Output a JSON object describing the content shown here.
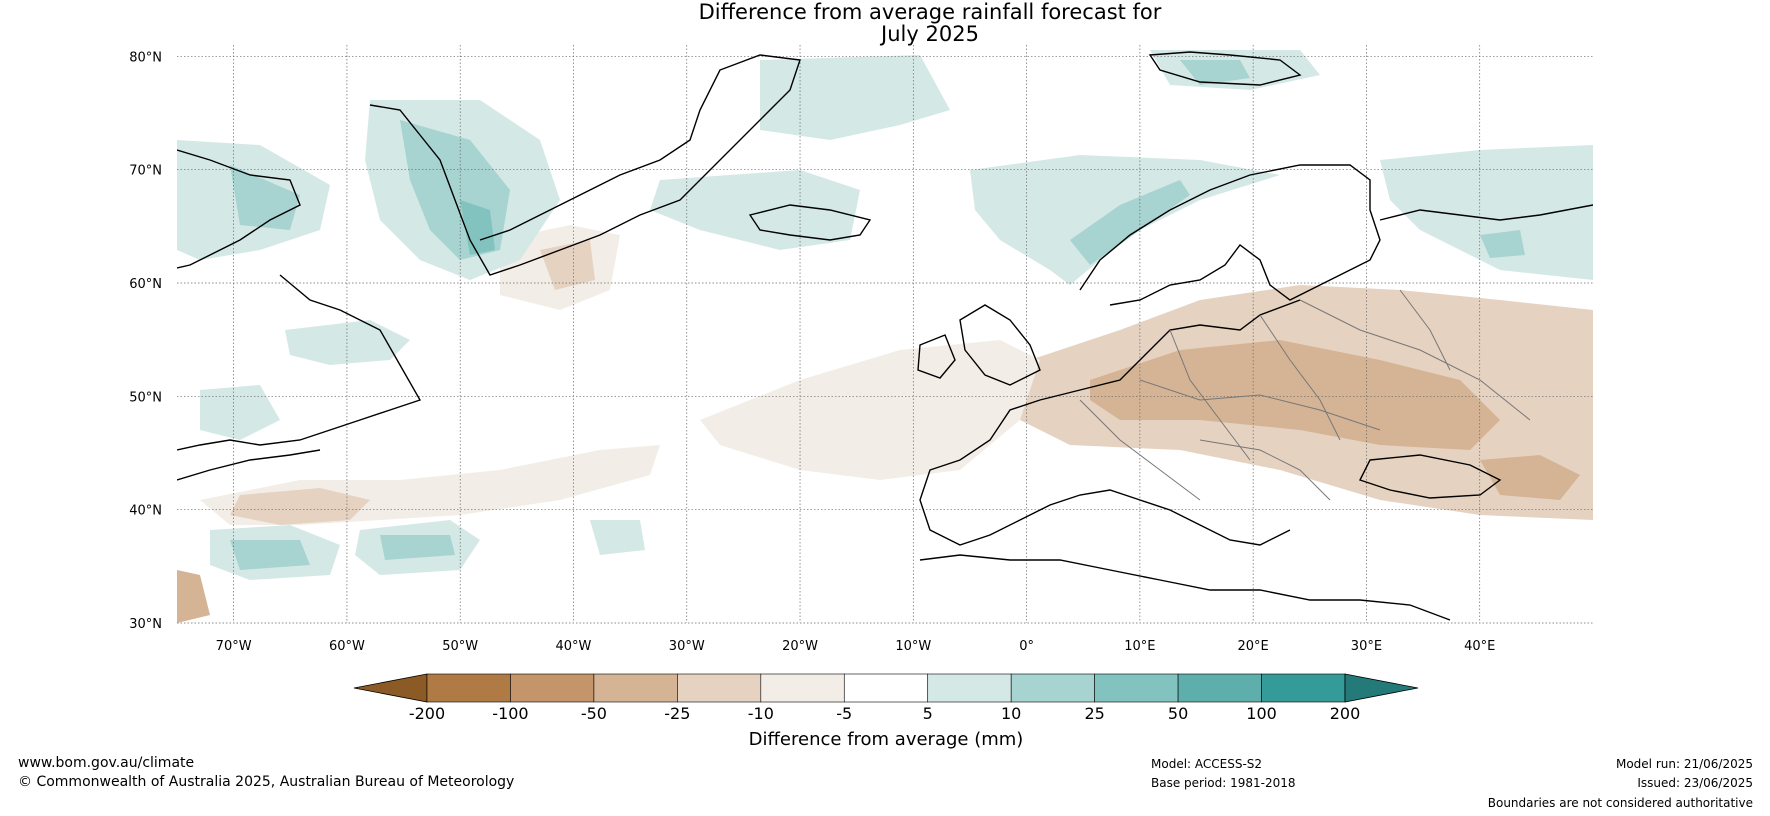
{
  "title": {
    "line1": "Difference from average rainfall forecast for",
    "line2": "July 2025"
  },
  "map": {
    "lat_labels": [
      "80°N",
      "70°N",
      "60°N",
      "50°N",
      "40°N",
      "30°N"
    ],
    "lon_labels": [
      "70°W",
      "60°W",
      "50°W",
      "40°W",
      "30°W",
      "20°W",
      "10°W",
      "0°",
      "10°E",
      "20°E",
      "30°E",
      "40°E"
    ],
    "lon_range": [
      -75,
      50
    ],
    "lat_range": [
      30,
      81
    ]
  },
  "colorbar": {
    "label": "Difference from average (mm)",
    "ticks": [
      "-200",
      "-100",
      "-50",
      "-25",
      "-10",
      "-5",
      "5",
      "10",
      "25",
      "50",
      "100",
      "200"
    ],
    "colors": [
      "#8c5a25",
      "#b07a45",
      "#c4946a",
      "#d5b495",
      "#e6d2c0",
      "#f3ede7",
      "#ffffff",
      "#d4e8e6",
      "#a7d3d1",
      "#82c3c0",
      "#5eaeab",
      "#359b98",
      "#237a78"
    ]
  },
  "footer": {
    "website": "www.bom.gov.au/climate",
    "copyright": "© Commonwealth of Australia 2025, Australian Bureau of Meteorology",
    "model": "Model: ACCESS-S2",
    "base_period": "Base period: 1981-2018",
    "model_run": "Model run: 21/06/2025",
    "issued": "Issued: 23/06/2025",
    "disclaimer": "Boundaries are not considered authoritative"
  }
}
